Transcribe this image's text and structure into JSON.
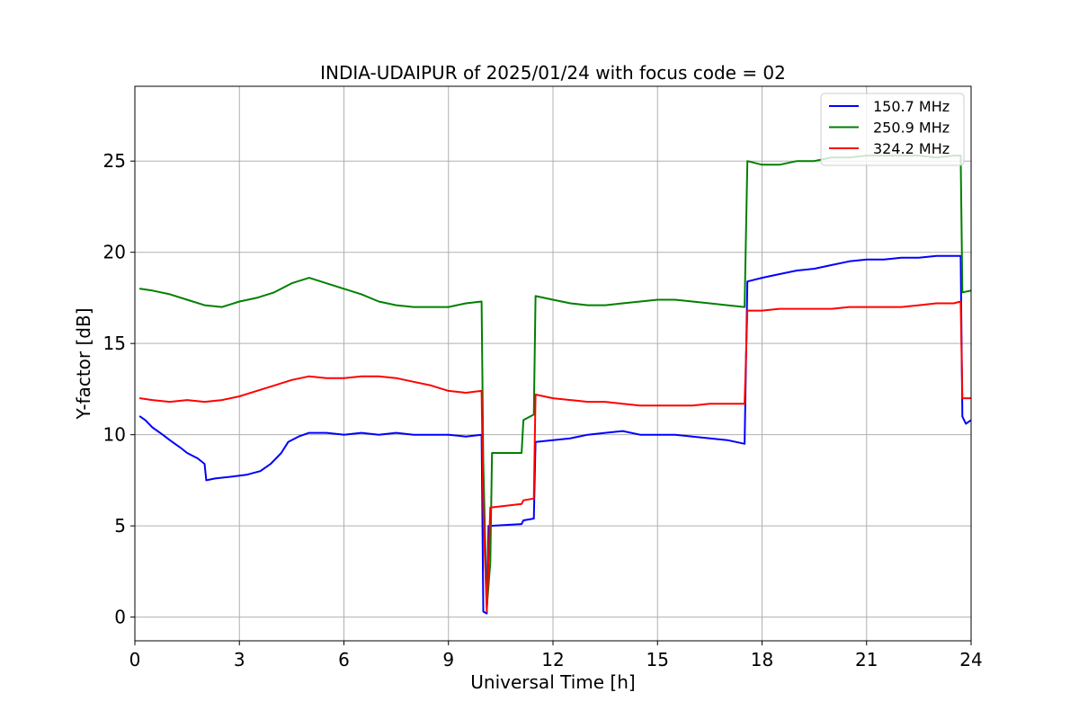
{
  "chart_data": {
    "type": "line",
    "title": "INDIA-UDAIPUR of 2025/01/24 with focus code = 02",
    "xlabel": "Universal Time [h]",
    "ylabel": "Y-factor [dB]",
    "xlim": [
      0,
      24
    ],
    "ylim": [
      -1.3,
      29.1
    ],
    "x_ticks": [
      0,
      3,
      6,
      9,
      12,
      15,
      18,
      21,
      24
    ],
    "y_ticks": [
      0,
      5,
      10,
      15,
      20,
      25
    ],
    "grid": true,
    "legend_position": "top-right",
    "series": [
      {
        "name": "150.7 MHz",
        "color": "#0000ff",
        "points": [
          [
            0.15,
            11.0
          ],
          [
            0.3,
            10.8
          ],
          [
            0.5,
            10.4
          ],
          [
            0.8,
            10.0
          ],
          [
            1.0,
            9.7
          ],
          [
            1.3,
            9.3
          ],
          [
            1.5,
            9.0
          ],
          [
            1.8,
            8.7
          ],
          [
            2.0,
            8.4
          ],
          [
            2.05,
            7.5
          ],
          [
            2.3,
            7.6
          ],
          [
            2.8,
            7.7
          ],
          [
            3.2,
            7.8
          ],
          [
            3.6,
            8.0
          ],
          [
            3.9,
            8.4
          ],
          [
            4.2,
            9.0
          ],
          [
            4.4,
            9.6
          ],
          [
            4.7,
            9.9
          ],
          [
            5.0,
            10.1
          ],
          [
            5.5,
            10.1
          ],
          [
            6.0,
            10.0
          ],
          [
            6.5,
            10.1
          ],
          [
            7.0,
            10.0
          ],
          [
            7.5,
            10.1
          ],
          [
            8.0,
            10.0
          ],
          [
            8.5,
            10.0
          ],
          [
            9.0,
            10.0
          ],
          [
            9.5,
            9.9
          ],
          [
            9.95,
            10.0
          ],
          [
            10.0,
            0.3
          ],
          [
            10.1,
            0.2
          ],
          [
            10.15,
            5.0
          ],
          [
            10.2,
            5.0
          ],
          [
            11.1,
            5.1
          ],
          [
            11.15,
            5.3
          ],
          [
            11.45,
            5.4
          ],
          [
            11.5,
            9.6
          ],
          [
            12.0,
            9.7
          ],
          [
            12.5,
            9.8
          ],
          [
            13.0,
            10.0
          ],
          [
            13.5,
            10.1
          ],
          [
            14.0,
            10.2
          ],
          [
            14.5,
            10.0
          ],
          [
            15.0,
            10.0
          ],
          [
            15.5,
            10.0
          ],
          [
            16.0,
            9.9
          ],
          [
            16.5,
            9.8
          ],
          [
            17.0,
            9.7
          ],
          [
            17.5,
            9.5
          ],
          [
            17.58,
            18.4
          ],
          [
            18.0,
            18.6
          ],
          [
            18.5,
            18.8
          ],
          [
            19.0,
            19.0
          ],
          [
            19.5,
            19.1
          ],
          [
            20.0,
            19.3
          ],
          [
            20.5,
            19.5
          ],
          [
            21.0,
            19.6
          ],
          [
            21.5,
            19.6
          ],
          [
            22.0,
            19.7
          ],
          [
            22.5,
            19.7
          ],
          [
            23.0,
            19.8
          ],
          [
            23.5,
            19.8
          ],
          [
            23.7,
            19.8
          ],
          [
            23.75,
            11.0
          ],
          [
            23.85,
            10.6
          ],
          [
            24.0,
            10.8
          ]
        ]
      },
      {
        "name": "250.9 MHz",
        "color": "#008000",
        "points": [
          [
            0.15,
            18.0
          ],
          [
            0.5,
            17.9
          ],
          [
            1.0,
            17.7
          ],
          [
            1.5,
            17.4
          ],
          [
            2.0,
            17.1
          ],
          [
            2.5,
            17.0
          ],
          [
            3.0,
            17.3
          ],
          [
            3.5,
            17.5
          ],
          [
            4.0,
            17.8
          ],
          [
            4.5,
            18.3
          ],
          [
            5.0,
            18.6
          ],
          [
            5.5,
            18.3
          ],
          [
            6.0,
            18.0
          ],
          [
            6.5,
            17.7
          ],
          [
            7.0,
            17.3
          ],
          [
            7.5,
            17.1
          ],
          [
            8.0,
            17.0
          ],
          [
            8.5,
            17.0
          ],
          [
            9.0,
            17.0
          ],
          [
            9.5,
            17.2
          ],
          [
            9.95,
            17.3
          ],
          [
            10.0,
            8.5
          ],
          [
            10.1,
            0.5
          ],
          [
            10.2,
            3.0
          ],
          [
            10.25,
            9.0
          ],
          [
            11.1,
            9.0
          ],
          [
            11.15,
            10.8
          ],
          [
            11.45,
            11.1
          ],
          [
            11.5,
            17.6
          ],
          [
            12.0,
            17.4
          ],
          [
            12.5,
            17.2
          ],
          [
            13.0,
            17.1
          ],
          [
            13.5,
            17.1
          ],
          [
            14.0,
            17.2
          ],
          [
            14.5,
            17.3
          ],
          [
            15.0,
            17.4
          ],
          [
            15.5,
            17.4
          ],
          [
            16.0,
            17.3
          ],
          [
            16.5,
            17.2
          ],
          [
            17.0,
            17.1
          ],
          [
            17.5,
            17.0
          ],
          [
            17.58,
            25.0
          ],
          [
            18.0,
            24.8
          ],
          [
            18.5,
            24.8
          ],
          [
            19.0,
            25.0
          ],
          [
            19.5,
            25.0
          ],
          [
            20.0,
            25.2
          ],
          [
            20.5,
            25.2
          ],
          [
            21.0,
            25.3
          ],
          [
            21.5,
            25.3
          ],
          [
            22.0,
            25.3
          ],
          [
            22.5,
            25.3
          ],
          [
            23.0,
            25.2
          ],
          [
            23.5,
            25.3
          ],
          [
            23.7,
            25.3
          ],
          [
            23.75,
            17.8
          ],
          [
            24.0,
            17.9
          ]
        ]
      },
      {
        "name": "324.2 MHz",
        "color": "#ff0000",
        "points": [
          [
            0.15,
            12.0
          ],
          [
            0.5,
            11.9
          ],
          [
            1.0,
            11.8
          ],
          [
            1.5,
            11.9
          ],
          [
            2.0,
            11.8
          ],
          [
            2.5,
            11.9
          ],
          [
            3.0,
            12.1
          ],
          [
            3.5,
            12.4
          ],
          [
            4.0,
            12.7
          ],
          [
            4.5,
            13.0
          ],
          [
            5.0,
            13.2
          ],
          [
            5.5,
            13.1
          ],
          [
            6.0,
            13.1
          ],
          [
            6.5,
            13.2
          ],
          [
            7.0,
            13.2
          ],
          [
            7.5,
            13.1
          ],
          [
            8.0,
            12.9
          ],
          [
            8.5,
            12.7
          ],
          [
            9.0,
            12.4
          ],
          [
            9.5,
            12.3
          ],
          [
            9.95,
            12.4
          ],
          [
            10.0,
            6.0
          ],
          [
            10.1,
            0.3
          ],
          [
            10.2,
            6.0
          ],
          [
            11.1,
            6.2
          ],
          [
            11.15,
            6.4
          ],
          [
            11.45,
            6.5
          ],
          [
            11.5,
            12.2
          ],
          [
            12.0,
            12.0
          ],
          [
            12.5,
            11.9
          ],
          [
            13.0,
            11.8
          ],
          [
            13.5,
            11.8
          ],
          [
            14.0,
            11.7
          ],
          [
            14.5,
            11.6
          ],
          [
            15.0,
            11.6
          ],
          [
            15.5,
            11.6
          ],
          [
            16.0,
            11.6
          ],
          [
            16.5,
            11.7
          ],
          [
            17.0,
            11.7
          ],
          [
            17.5,
            11.7
          ],
          [
            17.58,
            16.8
          ],
          [
            18.0,
            16.8
          ],
          [
            18.5,
            16.9
          ],
          [
            19.0,
            16.9
          ],
          [
            19.5,
            16.9
          ],
          [
            20.0,
            16.9
          ],
          [
            20.5,
            17.0
          ],
          [
            21.0,
            17.0
          ],
          [
            21.5,
            17.0
          ],
          [
            22.0,
            17.0
          ],
          [
            22.5,
            17.1
          ],
          [
            23.0,
            17.2
          ],
          [
            23.5,
            17.2
          ],
          [
            23.7,
            17.3
          ],
          [
            23.75,
            12.0
          ],
          [
            24.0,
            12.0
          ]
        ]
      }
    ]
  }
}
